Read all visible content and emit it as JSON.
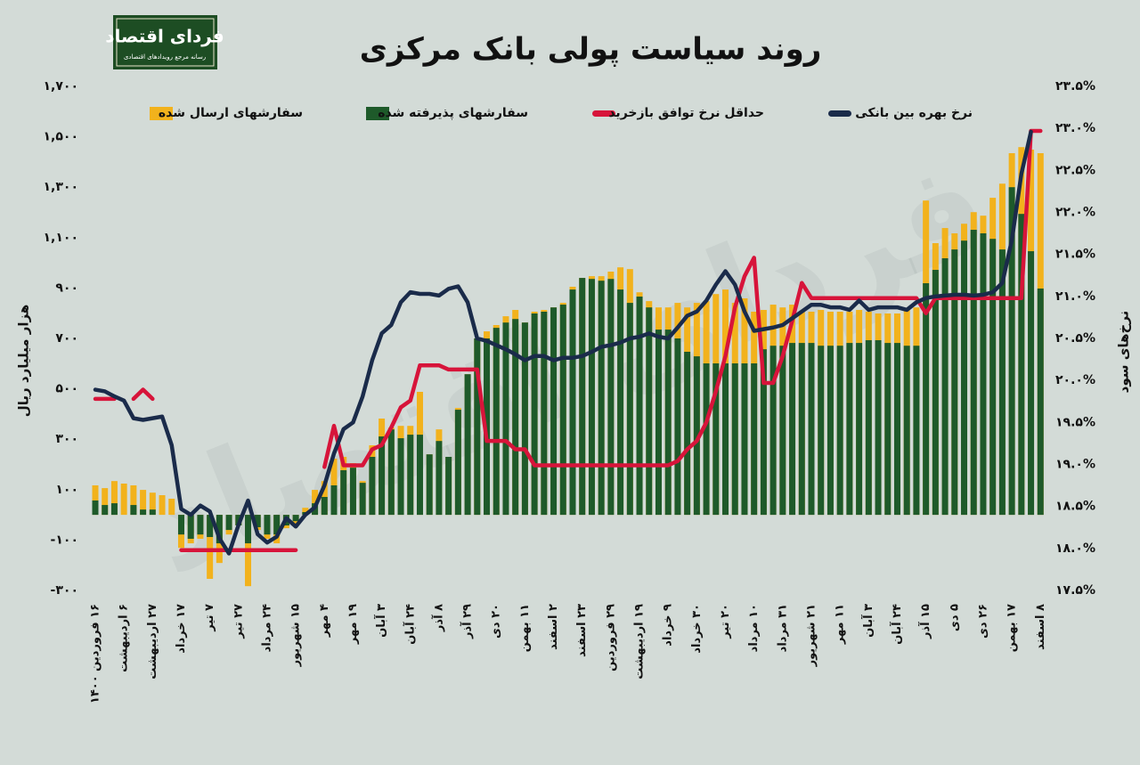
{
  "logo": {
    "name": "فردای اقتصاد",
    "tagline": "رسانه مرجع رویدادهای اقتصادی"
  },
  "chart_data": {
    "type": "bar",
    "title": "روند سیاست پولی بانک مرکزی",
    "y_label": "هزار میلیارد ریال",
    "y2_label": "نرخ‌های سود",
    "legend": "top",
    "grid": false,
    "ylim": [
      -300,
      1700
    ],
    "yticks": [
      {
        "value": 1700,
        "label": "۱,۷۰۰"
      },
      {
        "value": 1500,
        "label": "۱,۵۰۰"
      },
      {
        "value": 1300,
        "label": "۱,۳۰۰"
      },
      {
        "value": 1100,
        "label": "۱,۱۰۰"
      },
      {
        "value": 900,
        "label": "۹۰۰"
      },
      {
        "value": 700,
        "label": "۷۰۰"
      },
      {
        "value": 500,
        "label": "۵۰۰"
      },
      {
        "value": 300,
        "label": "۳۰۰"
      },
      {
        "value": 100,
        "label": "۱۰۰"
      },
      {
        "value": -100,
        "label": "-۱۰۰"
      },
      {
        "value": -300,
        "label": "-۳۰۰"
      }
    ],
    "y2lim": [
      17.5,
      23.5
    ],
    "y2ticks": [
      {
        "value": 23.5,
        "label": "۲۳.۵%"
      },
      {
        "value": 23,
        "label": "۲۳.۰%"
      },
      {
        "value": 22.5,
        "label": "۲۲.۵%"
      },
      {
        "value": 22,
        "label": "۲۲.۰%"
      },
      {
        "value": 21.5,
        "label": "۲۱.۵%"
      },
      {
        "value": 21,
        "label": "۲۱.۰%"
      },
      {
        "value": 20.5,
        "label": "۲۰.۵%"
      },
      {
        "value": 20,
        "label": "۲۰.۰%"
      },
      {
        "value": 19.5,
        "label": "۱۹.۵%"
      },
      {
        "value": 19,
        "label": "۱۹.۰%"
      },
      {
        "value": 18.5,
        "label": "۱۸.۵%"
      },
      {
        "value": 18,
        "label": "۱۸.۰%"
      },
      {
        "value": 17.5,
        "label": "۱۷.۵%"
      }
    ],
    "categories": [
      "۱۶ فروردین ۱۴۰۰",
      null,
      null,
      "۶ اردیبهشت",
      null,
      null,
      "۲۷ اردیبهشت",
      null,
      null,
      "۱۷ خرداد",
      null,
      null,
      "۷ تیر",
      null,
      null,
      "۲۷ تیر",
      null,
      null,
      "۲۴ مرداد",
      null,
      null,
      "۱۵ شهریور",
      null,
      null,
      "۴ مهر",
      null,
      null,
      "۱۹ مهر",
      null,
      null,
      "۳ آبان",
      null,
      null,
      "۲۴ آبان",
      null,
      null,
      "۸ آذر",
      null,
      null,
      "۲۹ آذر",
      null,
      null,
      "۲۰ دی",
      null,
      null,
      "۱۱ بهمن",
      null,
      null,
      "۲ اسفند",
      null,
      null,
      "۲۳ اسفند",
      null,
      null,
      "۲۹ فروردین",
      null,
      null,
      "۱۹ اردیبهشت",
      null,
      null,
      "۹ خرداد",
      null,
      null,
      "۳۰ خرداد",
      null,
      null,
      "۲۰ تیر",
      null,
      null,
      "۱۰ مرداد",
      null,
      null,
      "۳۱ مرداد",
      null,
      null,
      "۲۱ شهریور",
      null,
      null,
      "۱۱ مهر",
      null,
      null,
      "۳ آبان",
      null,
      null,
      "۲۴ آبان",
      null,
      null,
      "۱۵ آذر",
      null,
      null,
      "۵ دی",
      null,
      null,
      "۲۶ دی",
      null,
      null,
      "۱۷ بهمن",
      null,
      null,
      "۸ اسفند"
    ],
    "series": [
      {
        "name": "سفارشهای ارسال شده",
        "type": "bar",
        "color": "#f2b21c",
        "values": [
          117,
          106,
          134,
          124,
          117,
          99,
          88,
          78,
          64,
          -131,
          -113,
          -95,
          -254,
          -191,
          -78,
          -42,
          -283,
          -60,
          -95,
          -113,
          -53,
          -42,
          28,
          99,
          134,
          223,
          230,
          205,
          134,
          276,
          382,
          346,
          353,
          353,
          488,
          240,
          339,
          230,
          424,
          558,
          700,
          728,
          753,
          788,
          813,
          763,
          806,
          813,
          823,
          841,
          905,
          940,
          947,
          947,
          965,
          982,
          975,
          883,
          848,
          823,
          823,
          841,
          823,
          841,
          848,
          876,
          894,
          841,
          859,
          806,
          813,
          834,
          823,
          834,
          806,
          806,
          813,
          806,
          806,
          806,
          813,
          806,
          799,
          799,
          799,
          813,
          823,
          1247,
          1078,
          1138,
          1117,
          1155,
          1201,
          1187,
          1258,
          1314,
          1435,
          1459,
          1449,
          1435
        ]
      },
      {
        "name": "سفارشهای پذیرفته شده",
        "type": "bar",
        "color": "#1e5a2a",
        "values": [
          57,
          39,
          46,
          0,
          39,
          21,
          21,
          0,
          0,
          -78,
          -95,
          -78,
          -88,
          -113,
          -60,
          -42,
          -113,
          -49,
          -78,
          -78,
          -42,
          -25,
          11,
          46,
          71,
          117,
          177,
          187,
          127,
          230,
          311,
          339,
          304,
          318,
          318,
          240,
          293,
          230,
          417,
          558,
          700,
          700,
          742,
          763,
          777,
          763,
          799,
          806,
          823,
          834,
          894,
          940,
          936,
          929,
          936,
          894,
          841,
          866,
          823,
          735,
          735,
          700,
          647,
          629,
          601,
          601,
          601,
          601,
          601,
          601,
          657,
          671,
          671,
          682,
          682,
          682,
          671,
          671,
          671,
          682,
          682,
          693,
          693,
          682,
          682,
          671,
          671,
          919,
          972,
          1018,
          1053,
          1088,
          1131,
          1117,
          1095,
          1053,
          1300,
          1194,
          1046,
          898
        ]
      },
      {
        "name": "حداقل نرخ توافق بازخرید",
        "type": "line",
        "axis": "y2",
        "color": "#d7143a",
        "values": [
          19.78,
          19.78,
          19.78,
          null,
          19.78,
          19.89,
          19.78,
          null,
          null,
          17.98,
          17.98,
          17.98,
          17.98,
          17.98,
          17.98,
          17.98,
          17.98,
          17.98,
          17.98,
          17.98,
          17.98,
          17.98,
          null,
          null,
          18.97,
          19.46,
          18.99,
          18.99,
          18.99,
          19.18,
          19.23,
          19.44,
          19.68,
          19.76,
          20.18,
          20.18,
          20.18,
          20.13,
          20.13,
          20.13,
          20.13,
          19.28,
          19.28,
          19.28,
          19.18,
          19.18,
          18.99,
          18.99,
          18.99,
          18.99,
          18.99,
          18.99,
          18.99,
          18.99,
          18.99,
          18.99,
          18.99,
          18.99,
          18.99,
          18.99,
          18.99,
          19.04,
          19.18,
          19.28,
          19.5,
          19.87,
          20.29,
          20.87,
          21.24,
          21.46,
          19.97,
          19.97,
          20.29,
          20.71,
          21.16,
          20.98,
          20.98,
          20.98,
          20.98,
          20.98,
          20.98,
          20.98,
          20.98,
          20.98,
          20.98,
          20.98,
          20.98,
          20.8,
          20.98,
          20.98,
          20.98,
          20.98,
          20.98,
          20.98,
          20.98,
          20.98,
          20.98,
          20.98,
          22.97,
          22.97
        ]
      },
      {
        "name": "نرخ بهره بین بانکی",
        "type": "line",
        "axis": "y2",
        "color": "#1a2b4a",
        "values": [
          19.89,
          19.87,
          19.81,
          19.76,
          19.55,
          19.53,
          19.55,
          19.57,
          19.23,
          18.47,
          18.4,
          18.51,
          18.44,
          18.12,
          17.94,
          18.28,
          18.57,
          18.17,
          18.07,
          18.14,
          18.36,
          18.26,
          18.4,
          18.49,
          18.75,
          19.13,
          19.42,
          19.5,
          19.81,
          20.24,
          20.56,
          20.66,
          20.93,
          21.05,
          21.03,
          21.03,
          21.01,
          21.09,
          21.12,
          20.93,
          20.5,
          20.47,
          20.42,
          20.37,
          20.31,
          20.24,
          20.29,
          20.29,
          20.24,
          20.27,
          20.27,
          20.29,
          20.34,
          20.4,
          20.42,
          20.45,
          20.5,
          20.52,
          20.56,
          20.52,
          20.5,
          20.63,
          20.77,
          20.82,
          20.95,
          21.14,
          21.3,
          21.14,
          20.82,
          20.59,
          20.61,
          20.63,
          20.66,
          20.74,
          20.82,
          20.9,
          20.9,
          20.87,
          20.87,
          20.84,
          20.95,
          20.84,
          20.87,
          20.87,
          20.87,
          20.84,
          20.93,
          20.98,
          21,
          21.01,
          21.02,
          21.02,
          21.01,
          21.02,
          21.05,
          21.16,
          21.67,
          22.46,
          22.96,
          null
        ]
      }
    ]
  }
}
